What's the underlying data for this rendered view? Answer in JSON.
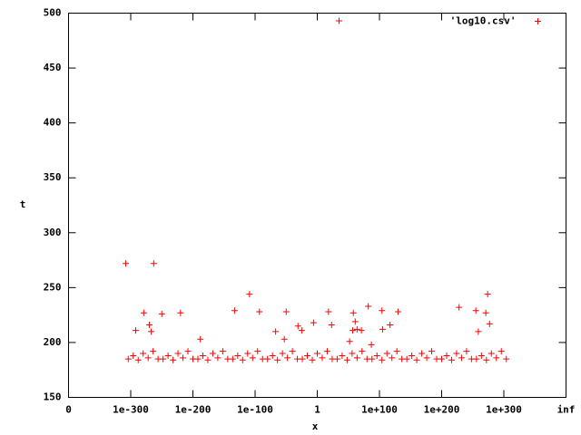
{
  "chart_data": {
    "type": "scatter",
    "xlabel": "x",
    "ylabel": "t",
    "xlim": [
      -400,
      400
    ],
    "xticks": [
      {
        "value": -400,
        "label": "0"
      },
      {
        "value": -300,
        "label": "1e-300"
      },
      {
        "value": -200,
        "label": "1e-200"
      },
      {
        "value": -100,
        "label": "1e-100"
      },
      {
        "value": 0,
        "label": "1"
      },
      {
        "value": 100,
        "label": "1e+100"
      },
      {
        "value": 200,
        "label": "1e+200"
      },
      {
        "value": 300,
        "label": "1e+300"
      },
      {
        "value": 400,
        "label": "inf"
      }
    ],
    "ylim": [
      150,
      500
    ],
    "yticks": [
      150,
      200,
      250,
      300,
      350,
      400,
      450,
      500
    ],
    "legend": "top-right",
    "series": [
      {
        "name": "'log10.csv'",
        "color": "#ff0000",
        "x": [
          -304,
          -296,
          -288,
          -280,
          -272,
          -264,
          -256,
          -248,
          -240,
          -232,
          -224,
          -216,
          -208,
          -200,
          -192,
          -184,
          -176,
          -168,
          -160,
          -152,
          -144,
          -136,
          -128,
          -120,
          -112,
          -104,
          -96,
          -88,
          -80,
          -72,
          -64,
          -56,
          -48,
          -40,
          -32,
          -24,
          -16,
          -8,
          0,
          8,
          16,
          24,
          32,
          40,
          48,
          56,
          64,
          72,
          80,
          88,
          96,
          104,
          112,
          120,
          128,
          136,
          144,
          152,
          160,
          168,
          176,
          184,
          192,
          200,
          208,
          216,
          224,
          232,
          240,
          248,
          256,
          264,
          272,
          280,
          288,
          296,
          304,
          -308,
          -263,
          35,
          -279,
          -250,
          -220,
          -109,
          -133,
          -93,
          -50,
          18,
          82,
          104,
          130,
          228,
          255,
          274,
          271,
          277,
          -292,
          -270,
          -267,
          -6,
          23,
          -31,
          -25,
          58,
          61,
          57,
          64,
          71,
          117,
          105,
          259,
          -67,
          -53,
          -188,
          87,
          52
        ],
        "values": [
          185,
          188,
          184,
          190,
          186,
          192,
          185,
          185,
          188,
          184,
          190,
          186,
          192,
          185,
          185,
          188,
          184,
          190,
          186,
          192,
          185,
          185,
          188,
          184,
          190,
          186,
          192,
          185,
          185,
          188,
          184,
          190,
          186,
          192,
          185,
          185,
          188,
          184,
          190,
          186,
          192,
          185,
          185,
          188,
          184,
          190,
          186,
          192,
          185,
          185,
          188,
          184,
          190,
          186,
          192,
          185,
          185,
          188,
          184,
          190,
          186,
          192,
          185,
          185,
          188,
          184,
          190,
          186,
          192,
          185,
          185,
          188,
          184,
          190,
          186,
          192,
          185,
          272,
          272,
          493,
          227,
          226,
          227,
          244,
          229,
          228,
          228,
          228,
          233,
          229,
          228,
          232,
          229,
          244,
          227,
          217,
          211,
          216,
          210,
          218,
          216,
          215,
          211,
          227,
          219,
          211,
          212,
          211,
          216,
          212,
          210,
          210,
          203,
          203,
          198,
          201
        ]
      }
    ]
  }
}
